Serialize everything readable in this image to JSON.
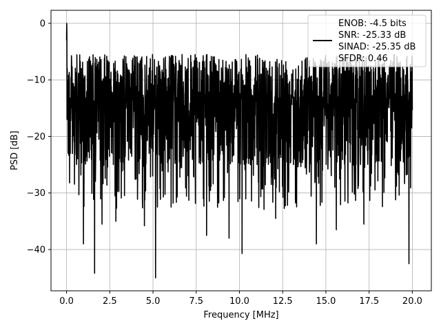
{
  "chart_data": {
    "type": "line",
    "title": "",
    "xlabel": "Frequency [MHz]",
    "ylabel": "PSD [dB]",
    "xlim": [
      -0.9,
      21.1
    ],
    "ylim": [
      -47.3,
      2.3
    ],
    "xticks": [
      0.0,
      2.5,
      5.0,
      7.5,
      10.0,
      12.5,
      15.0,
      17.5,
      20.0
    ],
    "xtick_labels": [
      "0.0",
      "2.5",
      "5.0",
      "7.5",
      "10.0",
      "12.5",
      "15.0",
      "17.5",
      "20.0"
    ],
    "yticks": [
      0,
      -10,
      -20,
      -30,
      -40
    ],
    "ytick_labels": [
      "0",
      "−10",
      "−20",
      "−30",
      "−40"
    ],
    "grid": true,
    "legend_position": "top-right",
    "series": [
      {
        "name": "ENOB: -4.5 bits\nSNR: -25.33 dB\nSINAD: -25.35 dB\nSFDR: 0.46",
        "color": "#000000",
        "x_start": 0.0,
        "x_end": 20.0,
        "num_points": 2048,
        "noise_floor_db": -15,
        "peak_value_db": 0.0,
        "min_value_db": -45.0,
        "deep_nulls": [
          {
            "x": 0.98,
            "y": -39.0
          },
          {
            "x": 1.62,
            "y": -44.2
          },
          {
            "x": 2.05,
            "y": -35.5
          },
          {
            "x": 2.85,
            "y": -35.0
          },
          {
            "x": 4.5,
            "y": -35.8
          },
          {
            "x": 5.15,
            "y": -45.0
          },
          {
            "x": 6.05,
            "y": -32.5
          },
          {
            "x": 8.1,
            "y": -37.5
          },
          {
            "x": 9.4,
            "y": -38.0
          },
          {
            "x": 10.15,
            "y": -40.7
          },
          {
            "x": 12.1,
            "y": -34.5
          },
          {
            "x": 14.45,
            "y": -39.0
          },
          {
            "x": 15.6,
            "y": -36.5
          },
          {
            "x": 17.2,
            "y": -35.5
          },
          {
            "x": 19.8,
            "y": -42.5
          }
        ]
      }
    ]
  },
  "legend": {
    "lines": [
      "ENOB: -4.5 bits",
      "SNR: -25.33 dB",
      "SINAD: -25.35 dB",
      "SFDR: 0.46"
    ],
    "line_color": "#000000"
  },
  "colors": {
    "background": "#ffffff",
    "grid": "#b0b0b0",
    "axes": "#000000",
    "series": "#000000"
  }
}
